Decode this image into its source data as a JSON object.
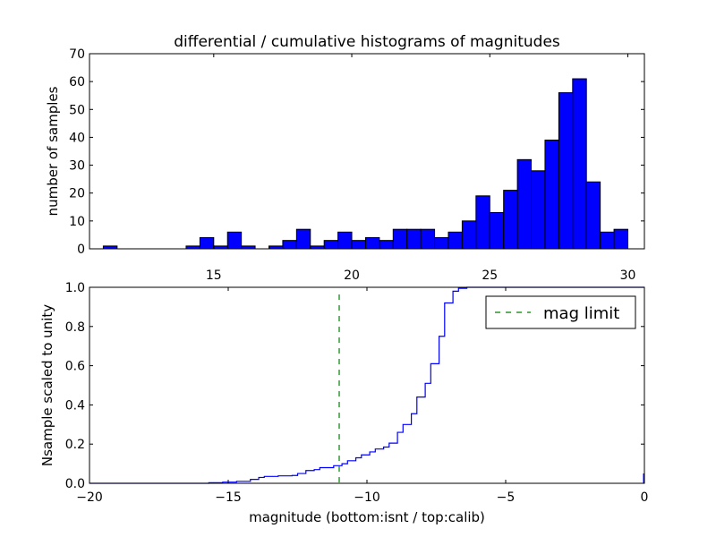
{
  "chart_data": [
    {
      "type": "bar",
      "title": "differential / cumulative histograms of magnitudes",
      "xlabel": "",
      "ylabel": "number of samples",
      "xlim": [
        10.5,
        30.6
      ],
      "ylim": [
        0,
        70
      ],
      "xticks": [
        15,
        20,
        25,
        30
      ],
      "yticks": [
        0,
        10,
        20,
        30,
        40,
        50,
        60,
        70
      ],
      "xtick_position": "top",
      "grid": false,
      "bar_color": "#0000ff",
      "bin_width": 0.5,
      "bins": [
        {
          "x": 11.25,
          "count": 1
        },
        {
          "x": 11.75,
          "count": 0
        },
        {
          "x": 12.25,
          "count": 0
        },
        {
          "x": 12.75,
          "count": 0
        },
        {
          "x": 13.25,
          "count": 0
        },
        {
          "x": 13.75,
          "count": 0
        },
        {
          "x": 14.25,
          "count": 1
        },
        {
          "x": 14.75,
          "count": 4
        },
        {
          "x": 15.25,
          "count": 1
        },
        {
          "x": 15.75,
          "count": 6
        },
        {
          "x": 16.25,
          "count": 1
        },
        {
          "x": 16.75,
          "count": 0
        },
        {
          "x": 17.25,
          "count": 1
        },
        {
          "x": 17.75,
          "count": 3
        },
        {
          "x": 18.25,
          "count": 7
        },
        {
          "x": 18.75,
          "count": 1
        },
        {
          "x": 19.25,
          "count": 3
        },
        {
          "x": 19.75,
          "count": 6
        },
        {
          "x": 20.25,
          "count": 3
        },
        {
          "x": 20.75,
          "count": 4
        },
        {
          "x": 21.25,
          "count": 3
        },
        {
          "x": 21.75,
          "count": 7
        },
        {
          "x": 22.25,
          "count": 7
        },
        {
          "x": 22.75,
          "count": 7
        },
        {
          "x": 23.25,
          "count": 4
        },
        {
          "x": 23.75,
          "count": 6
        },
        {
          "x": 24.25,
          "count": 10
        },
        {
          "x": 24.75,
          "count": 19
        },
        {
          "x": 25.25,
          "count": 13
        },
        {
          "x": 25.75,
          "count": 21
        },
        {
          "x": 26.25,
          "count": 32
        },
        {
          "x": 26.75,
          "count": 28
        },
        {
          "x": 27.25,
          "count": 39
        },
        {
          "x": 27.75,
          "count": 56
        },
        {
          "x": 28.25,
          "count": 61
        },
        {
          "x": 28.75,
          "count": 24
        },
        {
          "x": 29.25,
          "count": 6
        },
        {
          "x": 29.75,
          "count": 7
        }
      ]
    },
    {
      "type": "line",
      "title": "",
      "xlabel": "magnitude (bottom:isnt / top:calib)",
      "ylabel": "Nsample scaled to unity",
      "xlim": [
        -20,
        0
      ],
      "ylim": [
        0,
        1
      ],
      "xticks": [
        -20,
        -15,
        -10,
        -5,
        0
      ],
      "xtick_labels": [
        "−20",
        "−15",
        "−10",
        "−5",
        "0"
      ],
      "yticks": [
        0.0,
        0.2,
        0.4,
        0.6,
        0.8,
        1.0
      ],
      "ytick_labels": [
        "0.0",
        "0.2",
        "0.4",
        "0.6",
        "0.8",
        "1.0"
      ],
      "grid": false,
      "legend_position": "top-right",
      "series": [
        {
          "style": "step",
          "color": "#0000ff",
          "x": [
            -20,
            -15.7,
            -15.2,
            -14.7,
            -14.2,
            -13.9,
            -13.7,
            -13.2,
            -12.7,
            -12.5,
            -12.2,
            -11.9,
            -11.7,
            -11.2,
            -10.9,
            -10.7,
            -10.4,
            -10.2,
            -9.9,
            -9.7,
            -9.4,
            -9.2,
            -8.9,
            -8.7,
            -8.4,
            -8.2,
            -7.9,
            -7.7,
            -7.4,
            -7.2,
            -6.9,
            -6.7,
            -6.4,
            0
          ],
          "y": [
            0.0,
            0.003,
            0.006,
            0.01,
            0.02,
            0.03,
            0.035,
            0.038,
            0.04,
            0.05,
            0.065,
            0.07,
            0.08,
            0.09,
            0.1,
            0.115,
            0.13,
            0.145,
            0.16,
            0.175,
            0.185,
            0.205,
            0.26,
            0.3,
            0.355,
            0.44,
            0.51,
            0.61,
            0.75,
            0.92,
            0.98,
            0.995,
            1.0,
            1.0
          ]
        },
        {
          "name": "mag limit",
          "style": "dashed-vertical",
          "color": "#008000",
          "x": -11.0
        }
      ]
    }
  ]
}
